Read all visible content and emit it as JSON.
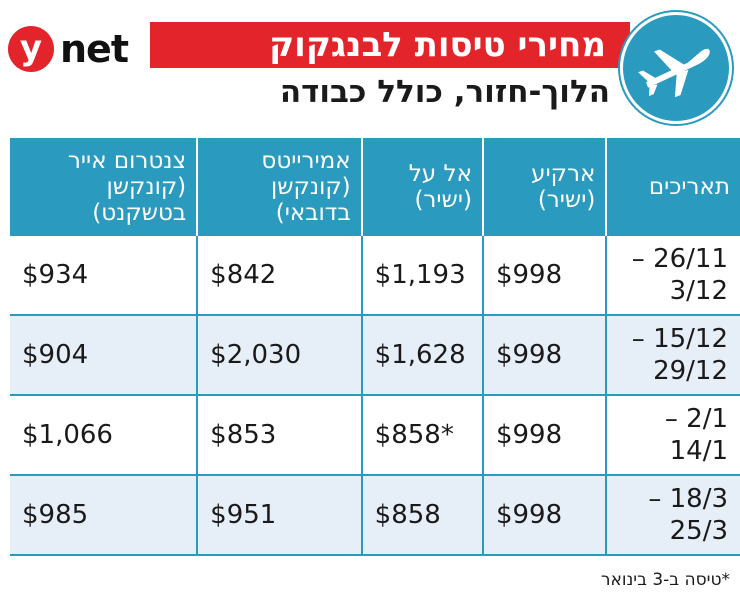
{
  "brand": {
    "logo_letter": "y",
    "logo_word": "net"
  },
  "header": {
    "title": "מחירי טיסות לבנגקוק",
    "subtitle": "הלוך-חזור, כולל כבודה",
    "icon": "airplane-icon"
  },
  "table": {
    "headers": [
      "תאריכים",
      "ארקיע\n(ישיר)",
      "אל על\n(ישיר)",
      "אמירייטס\n(קונקשן\nבדובאי)",
      "צנטרום אייר\n(קונקשן\nבטשקנט)"
    ],
    "rows": [
      {
        "dates": "26/11 – 3/12",
        "arkia": "$998",
        "elal": "$1,193",
        "emirates": "$842",
        "centrum": "$934"
      },
      {
        "dates": "15/12 – 29/12",
        "arkia": "$998",
        "elal": "$1,628",
        "emirates": "$2,030",
        "centrum": "$904"
      },
      {
        "dates": "2/1 – 14/1",
        "arkia": "$998",
        "elal": "$858*",
        "emirates": "$853",
        "centrum": "$1,066"
      },
      {
        "dates": "18/3 – 25/3",
        "arkia": "$998",
        "elal": "$858",
        "emirates": "$951",
        "centrum": "$985"
      }
    ]
  },
  "footnote": "*טיסה ב-3 בינואר",
  "colors": {
    "brand_red": "#e3242b",
    "header_blue": "#2a9bbf",
    "row_alt": "#e6eef8"
  }
}
